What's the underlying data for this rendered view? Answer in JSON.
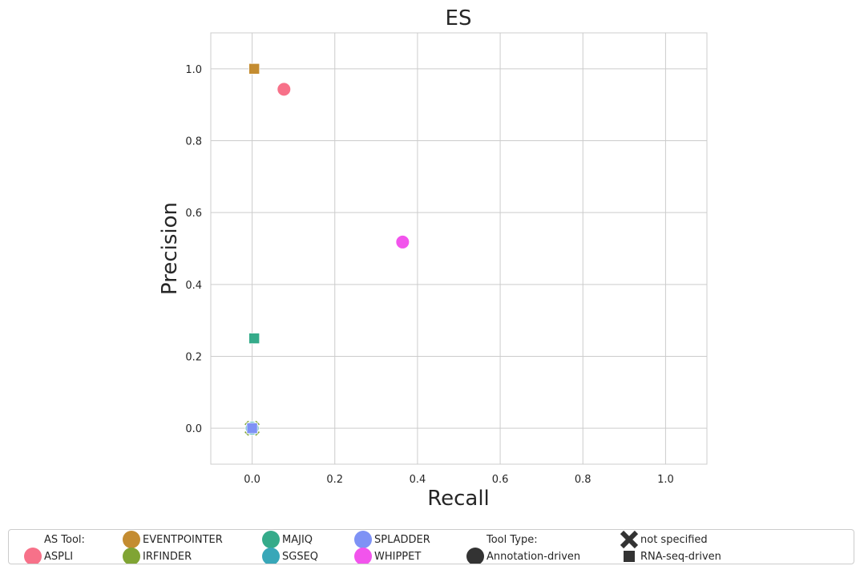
{
  "colors": {
    "ASPLI": "#f77189",
    "EVENTPOINTER": "#c48c31",
    "IRFINDER": "#80a434",
    "MAJIQ": "#35ab8a",
    "SGSEQ": "#38a7b8",
    "SPLADDER": "#7e92f5",
    "WHIPPET": "#f254ec",
    "marker_black": "#333333",
    "grid": "#cccccc"
  },
  "chart_data": {
    "type": "scatter",
    "title": "ES",
    "xlabel": "Recall",
    "ylabel": "Precision",
    "xlim": [
      -0.1,
      1.1
    ],
    "ylim": [
      -0.1,
      1.1
    ],
    "xticks": [
      0.0,
      0.2,
      0.4,
      0.6,
      0.8,
      1.0
    ],
    "yticks": [
      0.0,
      0.2,
      0.4,
      0.6,
      0.8,
      1.0
    ],
    "grid": true,
    "legend_position": "bottom",
    "points": [
      {
        "tool": "ASPLI",
        "type": "Annotation-driven",
        "x": 0.077,
        "y": 0.943
      },
      {
        "tool": "EVENTPOINTER",
        "type": "RNA-seq-driven",
        "x": 0.005,
        "y": 1.0
      },
      {
        "tool": "MAJIQ",
        "type": "RNA-seq-driven",
        "x": 0.005,
        "y": 0.25
      },
      {
        "tool": "WHIPPET",
        "type": "Annotation-driven",
        "x": 0.364,
        "y": 0.518
      },
      {
        "tool": "IRFINDER",
        "type": "not specified",
        "x": 0.0,
        "y": 0.0
      },
      {
        "tool": "SGSEQ",
        "type": "Annotation-driven",
        "x": 0.0,
        "y": 0.0
      },
      {
        "tool": "SPLADDER",
        "type": "RNA-seq-driven",
        "x": 0.0,
        "y": 0.0
      }
    ]
  },
  "legend": {
    "tool_header": "AS Tool:",
    "tools": [
      "ASPLI",
      "EVENTPOINTER",
      "IRFINDER",
      "MAJIQ",
      "SGSEQ",
      "SPLADDER",
      "WHIPPET"
    ],
    "type_header": "Tool Type:",
    "types": [
      {
        "label": "Annotation-driven",
        "marker": "circle"
      },
      {
        "label": "not specified",
        "marker": "x"
      },
      {
        "label": "RNA-seq-driven",
        "marker": "square"
      }
    ]
  }
}
